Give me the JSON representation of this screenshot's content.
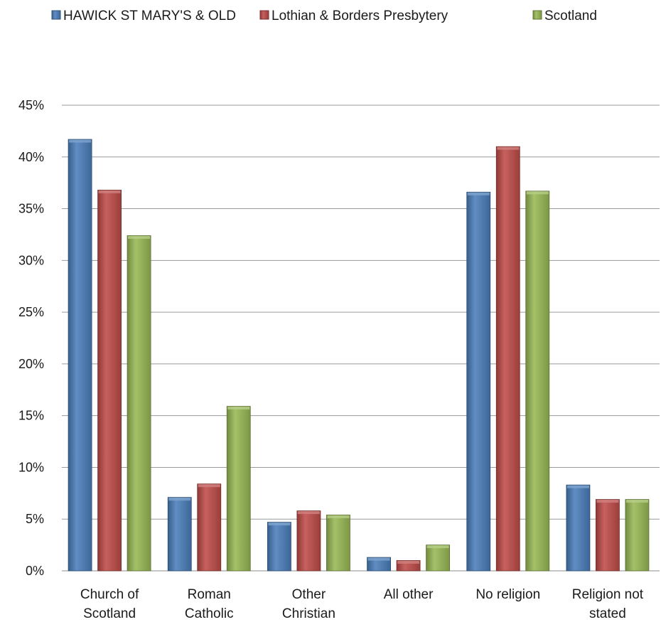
{
  "chart_data": {
    "type": "bar",
    "title": "",
    "xlabel": "",
    "ylabel": "",
    "ylim": [
      0,
      45
    ],
    "y_ticks": [
      "0%",
      "5%",
      "10%",
      "15%",
      "20%",
      "25%",
      "30%",
      "35%",
      "40%",
      "45%"
    ],
    "grid": true,
    "legend_position": "top",
    "categories": [
      [
        "Church of",
        "Scotland"
      ],
      [
        "Roman",
        "Catholic"
      ],
      [
        "Other",
        "Christian"
      ],
      [
        "All other"
      ],
      [
        "No religion"
      ],
      [
        "Religion not",
        "stated"
      ]
    ],
    "series": [
      {
        "name": "HAWICK ST MARY'S & OLD",
        "color": "#4a7ebb",
        "values": [
          41.7,
          7.1,
          4.7,
          1.3,
          36.6,
          8.3
        ]
      },
      {
        "name": "Lothian & Borders Presbytery",
        "color": "#be4b48",
        "values": [
          36.8,
          8.4,
          5.8,
          1.0,
          41.0,
          6.9
        ]
      },
      {
        "name": "Scotland",
        "color": "#98b954",
        "values": [
          32.4,
          15.9,
          5.4,
          2.5,
          36.7,
          6.9
        ]
      }
    ]
  }
}
